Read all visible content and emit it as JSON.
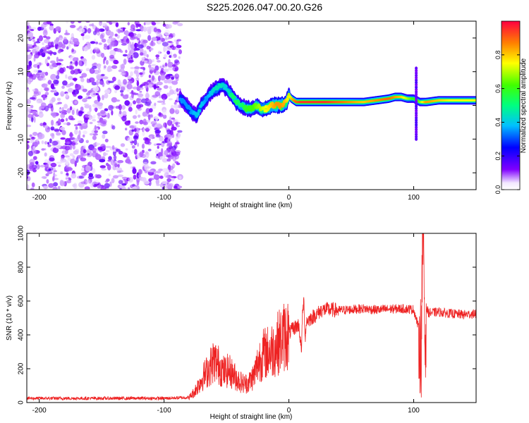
{
  "title": "S225.2026.047.00.20.G26",
  "chart_data": [
    {
      "type": "heatmap",
      "name": "spectrogram",
      "xlabel": "Height of straight line (km)",
      "ylabel": "Frequency (Hz)",
      "xlim": [
        -210,
        150
      ],
      "ylim": [
        -25,
        25
      ],
      "xticks": [
        -200,
        -100,
        0,
        100
      ],
      "yticks": [
        -20,
        -10,
        0,
        10,
        20
      ],
      "colorbar": {
        "label": "Normalized spectral amplitude",
        "range": [
          0,
          1
        ],
        "ticks": [
          0.0,
          0.2,
          0.4,
          0.6,
          0.8
        ],
        "tick_labels": [
          "0.0",
          "0.2",
          "0.4",
          "0.6",
          "0.8"
        ]
      },
      "noise_region_x": [
        -210,
        -87
      ],
      "ridge": {
        "x": [
          -87,
          -82,
          -78,
          -74,
          -70,
          -66,
          -62,
          -58,
          -54,
          -50,
          -46,
          -42,
          -38,
          -34,
          -30,
          -26,
          -22,
          -18,
          -14,
          -10,
          -6,
          -2,
          0,
          2,
          6,
          10,
          20,
          30,
          40,
          50,
          60,
          70,
          80,
          85,
          90,
          95,
          100,
          105,
          110,
          120,
          130,
          140,
          150
        ],
        "freq": [
          2,
          0,
          -2,
          -3,
          0,
          2,
          4,
          5,
          6,
          5,
          3,
          1,
          0,
          -1,
          -1,
          0,
          -1,
          -1,
          0,
          0,
          0,
          1,
          3,
          2,
          1,
          1,
          1,
          1,
          1,
          1,
          1,
          1.5,
          2,
          2.5,
          2.5,
          2,
          2,
          1,
          1,
          1.5,
          1.5,
          1.5,
          1.5
        ],
        "amp": [
          0.35,
          0.35,
          0.35,
          0.4,
          0.4,
          0.35,
          0.4,
          0.45,
          0.45,
          0.4,
          0.5,
          0.55,
          0.5,
          0.6,
          0.6,
          0.65,
          0.7,
          0.75,
          0.8,
          0.85,
          0.85,
          0.8,
          0.7,
          0.8,
          0.9,
          0.95,
          0.95,
          0.95,
          0.9,
          0.85,
          0.8,
          0.85,
          0.9,
          0.85,
          0.8,
          0.7,
          0.6,
          0.65,
          0.85,
          0.8,
          0.75,
          0.75,
          0.75
        ]
      },
      "spike_x": 102,
      "spike_freq_range": [
        -10,
        11
      ]
    },
    {
      "type": "line",
      "name": "snr",
      "xlabel": "Height of straight line (km)",
      "ylabel": "SNR (10 * v/v)",
      "xlim": [
        -210,
        150
      ],
      "ylim": [
        0,
        1000
      ],
      "xticks": [
        -200,
        -100,
        0,
        100
      ],
      "yticks": [
        0,
        200,
        400,
        600,
        800,
        1000
      ],
      "color": "#ee2222",
      "series": [
        {
          "name": "SNR",
          "x": [
            -210,
            -180,
            -150,
            -120,
            -100,
            -80,
            -76,
            -72,
            -68,
            -64,
            -60,
            -56,
            -52,
            -48,
            -44,
            -40,
            -36,
            -32,
            -28,
            -24,
            -20,
            -16,
            -12,
            -8,
            -4,
            0,
            4,
            8,
            10,
            11,
            12,
            13,
            14,
            18,
            22,
            26,
            30,
            40,
            50,
            60,
            70,
            80,
            90,
            100,
            104,
            106,
            107,
            108,
            109,
            110,
            112,
            120,
            130,
            140,
            150
          ],
          "y": [
            25,
            25,
            25,
            25,
            25,
            30,
            60,
            110,
            160,
            200,
            250,
            220,
            180,
            190,
            160,
            130,
            110,
            120,
            160,
            250,
            290,
            300,
            320,
            360,
            390,
            410,
            440,
            460,
            300,
            540,
            600,
            380,
            480,
            500,
            520,
            545,
            550,
            545,
            550,
            555,
            548,
            552,
            555,
            550,
            440,
            300,
            900,
            1000,
            300,
            560,
            530,
            535,
            525,
            520,
            525
          ]
        }
      ]
    }
  ]
}
